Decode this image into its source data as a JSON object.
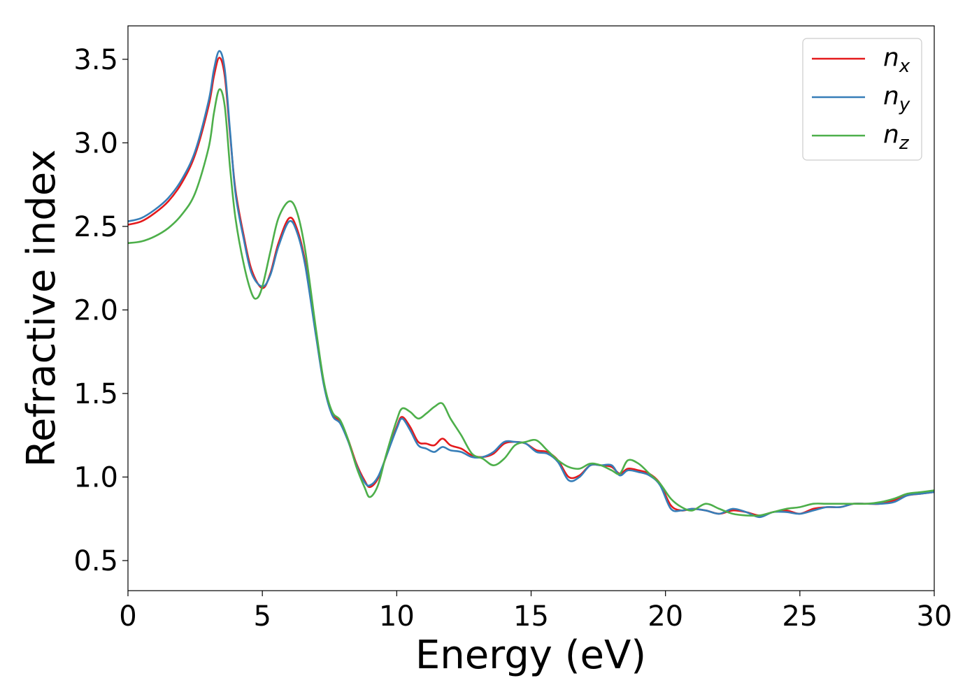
{
  "chart_data": {
    "type": "line",
    "title": "",
    "xlabel": "Energy (eV)",
    "ylabel": "Refractive index",
    "xlim": [
      0,
      30
    ],
    "ylim": [
      0.32,
      3.7
    ],
    "xticks": [
      0,
      5,
      10,
      15,
      20,
      25,
      30
    ],
    "yticks": [
      0.5,
      1.0,
      1.5,
      2.0,
      2.5,
      3.0,
      3.5
    ],
    "xtick_labels": [
      "0",
      "5",
      "10",
      "15",
      "20",
      "25",
      "30"
    ],
    "ytick_labels": [
      "0.5",
      "1.0",
      "1.5",
      "2.0",
      "2.5",
      "3.0",
      "3.5"
    ],
    "grid": false,
    "legend_position": "top-right",
    "series": [
      {
        "name": "n_x",
        "label_base": "n",
        "label_sub": "x",
        "color": "#e41a1c",
        "x": [
          0,
          0.5,
          1,
          1.5,
          2,
          2.5,
          3,
          3.2,
          3.4,
          3.6,
          3.8,
          4,
          4.3,
          4.6,
          5,
          5.3,
          5.6,
          6,
          6.3,
          6.6,
          7,
          7.3,
          7.6,
          7.9,
          8.2,
          8.5,
          8.8,
          9,
          9.3,
          9.6,
          10,
          10.2,
          10.5,
          10.8,
          11.1,
          11.4,
          11.7,
          12,
          12.4,
          12.8,
          13.2,
          13.6,
          14,
          14.4,
          14.8,
          15.2,
          15.6,
          16,
          16.4,
          16.8,
          17.2,
          17.6,
          18,
          18.3,
          18.6,
          19,
          19.4,
          19.8,
          20.2,
          20.6,
          21,
          21.5,
          22,
          22.5,
          23,
          23.5,
          24,
          24.5,
          25,
          25.5,
          26,
          26.5,
          27,
          27.5,
          28,
          28.5,
          29,
          29.5,
          30
        ],
        "y": [
          2.51,
          2.53,
          2.58,
          2.65,
          2.76,
          2.93,
          3.22,
          3.4,
          3.51,
          3.4,
          3.05,
          2.72,
          2.45,
          2.24,
          2.13,
          2.22,
          2.4,
          2.55,
          2.48,
          2.28,
          1.85,
          1.55,
          1.38,
          1.33,
          1.22,
          1.08,
          0.98,
          0.94,
          0.99,
          1.12,
          1.3,
          1.36,
          1.3,
          1.21,
          1.2,
          1.19,
          1.23,
          1.19,
          1.17,
          1.13,
          1.12,
          1.14,
          1.2,
          1.21,
          1.2,
          1.16,
          1.15,
          1.1,
          1.0,
          1.01,
          1.07,
          1.07,
          1.06,
          1.02,
          1.05,
          1.04,
          1.02,
          0.96,
          0.83,
          0.8,
          0.81,
          0.8,
          0.78,
          0.8,
          0.79,
          0.77,
          0.79,
          0.8,
          0.78,
          0.81,
          0.82,
          0.82,
          0.84,
          0.84,
          0.84,
          0.86,
          0.89,
          0.9,
          0.91
        ]
      },
      {
        "name": "n_y",
        "label_base": "n",
        "label_sub": "y",
        "color": "#377eb8",
        "x": [
          0,
          0.5,
          1,
          1.5,
          2,
          2.5,
          3,
          3.2,
          3.4,
          3.6,
          3.8,
          4,
          4.3,
          4.6,
          5,
          5.3,
          5.6,
          6,
          6.3,
          6.6,
          7,
          7.3,
          7.6,
          7.9,
          8.2,
          8.5,
          8.8,
          9,
          9.3,
          9.6,
          10,
          10.2,
          10.5,
          10.8,
          11.1,
          11.4,
          11.7,
          12,
          12.4,
          12.8,
          13.2,
          13.6,
          14,
          14.4,
          14.8,
          15.2,
          15.6,
          16,
          16.4,
          16.8,
          17.2,
          17.6,
          18,
          18.3,
          18.6,
          19,
          19.4,
          19.8,
          20.2,
          20.6,
          21,
          21.5,
          22,
          22.5,
          23,
          23.5,
          24,
          24.5,
          25,
          25.5,
          26,
          26.5,
          27,
          27.5,
          28,
          28.5,
          29,
          29.5,
          30
        ],
        "y": [
          2.53,
          2.55,
          2.6,
          2.67,
          2.78,
          2.95,
          3.25,
          3.44,
          3.55,
          3.44,
          3.07,
          2.7,
          2.43,
          2.22,
          2.14,
          2.21,
          2.38,
          2.53,
          2.46,
          2.26,
          1.84,
          1.54,
          1.37,
          1.32,
          1.21,
          1.07,
          0.97,
          0.95,
          1.0,
          1.12,
          1.29,
          1.35,
          1.28,
          1.19,
          1.17,
          1.15,
          1.18,
          1.16,
          1.15,
          1.12,
          1.12,
          1.15,
          1.21,
          1.21,
          1.2,
          1.15,
          1.14,
          1.09,
          0.98,
          1.0,
          1.07,
          1.07,
          1.07,
          1.01,
          1.04,
          1.03,
          1.01,
          0.95,
          0.81,
          0.8,
          0.81,
          0.8,
          0.78,
          0.81,
          0.79,
          0.76,
          0.79,
          0.79,
          0.78,
          0.8,
          0.82,
          0.82,
          0.84,
          0.84,
          0.84,
          0.85,
          0.89,
          0.9,
          0.91
        ]
      },
      {
        "name": "n_z",
        "label_base": "n",
        "label_sub": "z",
        "color": "#4daf4a",
        "x": [
          0,
          0.5,
          1,
          1.5,
          2,
          2.5,
          3,
          3.2,
          3.4,
          3.6,
          3.8,
          4,
          4.3,
          4.6,
          4.8,
          5,
          5.3,
          5.6,
          6,
          6.3,
          6.6,
          7,
          7.3,
          7.6,
          7.9,
          8.2,
          8.5,
          8.8,
          9,
          9.3,
          9.6,
          10,
          10.2,
          10.5,
          10.8,
          11.1,
          11.4,
          11.7,
          12,
          12.4,
          12.8,
          13.2,
          13.6,
          14,
          14.4,
          14.8,
          15.2,
          15.6,
          16,
          16.4,
          16.8,
          17.2,
          17.6,
          18,
          18.3,
          18.6,
          19,
          19.4,
          19.8,
          20.2,
          20.6,
          21,
          21.5,
          22,
          22.5,
          23,
          23.5,
          24,
          24.5,
          25,
          25.5,
          26,
          26.5,
          27,
          27.5,
          28,
          28.5,
          29,
          29.5,
          30
        ],
        "y": [
          2.4,
          2.41,
          2.44,
          2.49,
          2.57,
          2.7,
          2.97,
          3.18,
          3.32,
          3.22,
          2.85,
          2.55,
          2.28,
          2.1,
          2.07,
          2.14,
          2.35,
          2.55,
          2.65,
          2.58,
          2.35,
          1.88,
          1.56,
          1.39,
          1.34,
          1.22,
          1.06,
          0.94,
          0.88,
          0.95,
          1.13,
          1.34,
          1.41,
          1.39,
          1.35,
          1.38,
          1.42,
          1.44,
          1.35,
          1.25,
          1.14,
          1.11,
          1.07,
          1.11,
          1.19,
          1.21,
          1.22,
          1.16,
          1.1,
          1.06,
          1.05,
          1.08,
          1.07,
          1.04,
          1.02,
          1.1,
          1.08,
          1.02,
          0.96,
          0.87,
          0.82,
          0.8,
          0.84,
          0.81,
          0.78,
          0.77,
          0.77,
          0.79,
          0.81,
          0.82,
          0.84,
          0.84,
          0.84,
          0.84,
          0.84,
          0.85,
          0.87,
          0.9,
          0.91,
          0.92
        ]
      }
    ]
  }
}
